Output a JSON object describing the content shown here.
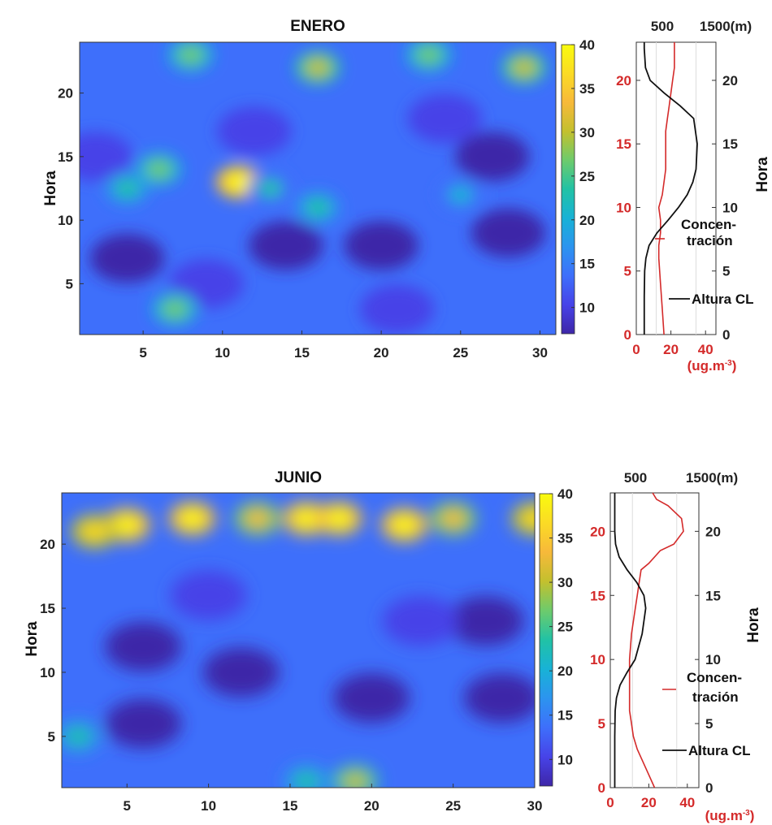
{
  "chart_data": [
    {
      "type": "heatmap",
      "title": "ENERO",
      "ylabel": "Hora",
      "xlabel": "",
      "xlim": [
        1,
        31
      ],
      "ylim": [
        1,
        24
      ],
      "xticks": [
        "5",
        "10",
        "15",
        "20",
        "25",
        "30"
      ],
      "yticks": [
        "5",
        "10",
        "15",
        "20"
      ],
      "colorbar": {
        "range": [
          7,
          40
        ],
        "ticks": [
          "10",
          "15",
          "20",
          "25",
          "30",
          "35",
          "40"
        ]
      },
      "hotspots": [
        {
          "x": 11,
          "y": 13,
          "value": 40
        },
        {
          "x": 6,
          "y": 14,
          "value": 27
        },
        {
          "x": 4,
          "y": 12.5,
          "value": 25
        },
        {
          "x": 8,
          "y": 23,
          "value": 28
        },
        {
          "x": 16,
          "y": 22,
          "value": 31
        },
        {
          "x": 23,
          "y": 23,
          "value": 28
        },
        {
          "x": 29,
          "y": 22,
          "value": 30
        },
        {
          "x": 16,
          "y": 11,
          "value": 25
        },
        {
          "x": 7,
          "y": 3,
          "value": 27
        },
        {
          "x": 13,
          "y": 12.5,
          "value": 22
        },
        {
          "x": 25,
          "y": 12,
          "value": 20
        }
      ],
      "lowzones": [
        {
          "x": 4,
          "y": 7,
          "value": 8
        },
        {
          "x": 14,
          "y": 8,
          "value": 8
        },
        {
          "x": 20,
          "y": 8,
          "value": 7
        },
        {
          "x": 28,
          "y": 9,
          "value": 8
        },
        {
          "x": 27,
          "y": 15,
          "value": 8
        },
        {
          "x": 12,
          "y": 17,
          "value": 9
        },
        {
          "x": 2,
          "y": 15,
          "value": 9
        },
        {
          "x": 24,
          "y": 18,
          "value": 9
        },
        {
          "x": 9,
          "y": 5,
          "value": 9
        },
        {
          "x": 21,
          "y": 3,
          "value": 9
        }
      ]
    },
    {
      "type": "heatmap",
      "title": "JUNIO",
      "ylabel": "Hora",
      "xlabel": "",
      "xlim": [
        1,
        30
      ],
      "ylim": [
        1,
        24
      ],
      "xticks": [
        "5",
        "10",
        "15",
        "20",
        "25",
        "30"
      ],
      "yticks": [
        "5",
        "10",
        "15",
        "20"
      ],
      "colorbar": {
        "range": [
          7,
          40
        ],
        "ticks": [
          "10",
          "15",
          "20",
          "25",
          "30",
          "35",
          "40"
        ]
      },
      "hotspots": [
        {
          "x": 5,
          "y": 21.5,
          "value": 42
        },
        {
          "x": 9,
          "y": 22,
          "value": 40
        },
        {
          "x": 3,
          "y": 21,
          "value": 37
        },
        {
          "x": 13,
          "y": 22,
          "value": 34
        },
        {
          "x": 16,
          "y": 22,
          "value": 42
        },
        {
          "x": 18,
          "y": 22,
          "value": 40
        },
        {
          "x": 22,
          "y": 21.5,
          "value": 42
        },
        {
          "x": 25,
          "y": 22,
          "value": 35
        },
        {
          "x": 30,
          "y": 22,
          "value": 37
        },
        {
          "x": 2,
          "y": 5,
          "value": 25
        },
        {
          "x": 19,
          "y": 1.5,
          "value": 30
        },
        {
          "x": 16,
          "y": 1.5,
          "value": 25
        }
      ],
      "lowzones": [
        {
          "x": 6,
          "y": 12,
          "value": 8
        },
        {
          "x": 12,
          "y": 10,
          "value": 8
        },
        {
          "x": 20,
          "y": 8,
          "value": 8
        },
        {
          "x": 28,
          "y": 8,
          "value": 7
        },
        {
          "x": 27,
          "y": 14,
          "value": 8
        },
        {
          "x": 6,
          "y": 6,
          "value": 8
        },
        {
          "x": 23,
          "y": 14,
          "value": 9
        },
        {
          "x": 10,
          "y": 16,
          "value": 9
        }
      ]
    },
    {
      "type": "line",
      "title": "",
      "ylabel": "Hora",
      "ylim": [
        0,
        23
      ],
      "yticks": [
        "0",
        "5",
        "10",
        "15",
        "20"
      ],
      "top_axis": {
        "label": "(m)",
        "ticks": [
          "500",
          "1500"
        ],
        "range": [
          0,
          2000
        ]
      },
      "bottom_axis": {
        "unit": "(ug.m-3)",
        "ticks": [
          "0",
          "20",
          "40"
        ],
        "range": [
          0,
          46
        ]
      },
      "series": [
        {
          "name": "Altura CL",
          "color": "#111111",
          "axis": "top",
          "x": [
            200,
            200,
            210,
            240,
            320,
            520,
            800,
            1060,
            1280,
            1420,
            1500,
            1530,
            1440,
            1100,
            700,
            350,
            230,
            210,
            200,
            200
          ],
          "y": [
            0,
            3,
            5,
            6,
            7,
            8,
            9,
            10,
            11,
            12,
            13,
            15,
            17,
            18,
            19,
            20,
            21,
            22,
            22.5,
            23
          ]
        },
        {
          "name": "Concentración",
          "color": "#d42a2a",
          "axis": "bottom",
          "x": [
            16,
            15,
            14,
            13,
            13,
            14,
            14,
            13,
            15,
            16,
            17,
            17,
            17,
            17,
            18,
            19,
            20,
            21,
            22,
            22
          ],
          "y": [
            0,
            2,
            4,
            6,
            7,
            8,
            9,
            10,
            11,
            12,
            13,
            14,
            15,
            16,
            17,
            18,
            19,
            20,
            21,
            23
          ]
        }
      ],
      "legend": [
        "Concen-",
        "tración",
        "Altura CL"
      ]
    },
    {
      "type": "line",
      "title": "",
      "ylabel": "Hora",
      "ylim": [
        0,
        23
      ],
      "yticks": [
        "0",
        "5",
        "10",
        "15",
        "20"
      ],
      "top_axis": {
        "label": "(m)",
        "ticks": [
          "500",
          "1500"
        ],
        "range": [
          0,
          2000
        ]
      },
      "bottom_axis": {
        "unit": "(ug.m-3)",
        "ticks": [
          "0",
          "20",
          "40"
        ],
        "range": [
          0,
          46
        ]
      },
      "series": [
        {
          "name": "Altura CL",
          "color": "#111111",
          "axis": "top",
          "x": [
            100,
            100,
            110,
            140,
            220,
            380,
            560,
            720,
            800,
            760,
            600,
            380,
            200,
            120,
            100,
            100,
            100
          ],
          "y": [
            0,
            4,
            6,
            7,
            8,
            9,
            10,
            12,
            14,
            15,
            16,
            17,
            18,
            19,
            20,
            21,
            23
          ]
        },
        {
          "name": "Concentración",
          "color": "#d42a2a",
          "axis": "bottom",
          "x": [
            23,
            20,
            17,
            14,
            12,
            11,
            10,
            10,
            10,
            11,
            13,
            14,
            15,
            16,
            20,
            26,
            33,
            38,
            37,
            30,
            24,
            22
          ],
          "y": [
            0,
            1,
            2,
            3,
            4,
            5,
            6,
            8,
            10,
            12,
            14,
            15,
            16,
            17,
            17.5,
            18.5,
            19,
            20,
            21,
            22,
            22.5,
            23
          ]
        }
      ],
      "legend": [
        "Concen-",
        "tración",
        "Altura CL"
      ]
    }
  ],
  "panels": {
    "enero": {
      "title": "ENERO",
      "ylabel": "Hora"
    },
    "junio": {
      "title": "JUNIO",
      "ylabel": "Hora"
    },
    "profile": {
      "top_ticks": [
        "500",
        "1500(m)"
      ],
      "left_ticks": [
        "0",
        "5",
        "10",
        "15",
        "20"
      ],
      "right_ticks": [
        "0",
        "5",
        "10",
        "15",
        "20"
      ],
      "bottom_ticks": [
        "0",
        "20",
        "40"
      ],
      "unit": "(ug.m",
      "unit_exp": "-3",
      "unit_close": ")",
      "right_label": "Hora",
      "legend_conc_1": "Concen-",
      "legend_conc_2": "tración",
      "legend_cl": "Altura CL"
    }
  },
  "colors": {
    "concentration": "#d42a2a",
    "cl_height": "#111111",
    "colormap": [
      "#3e26a8",
      "#4743e8",
      "#3e6ffb",
      "#2c94ef",
      "#18b2d6",
      "#21c2a5",
      "#6dcb6c",
      "#c3c02e",
      "#f7b93a",
      "#fbdb25",
      "#f9fb0e"
    ]
  }
}
